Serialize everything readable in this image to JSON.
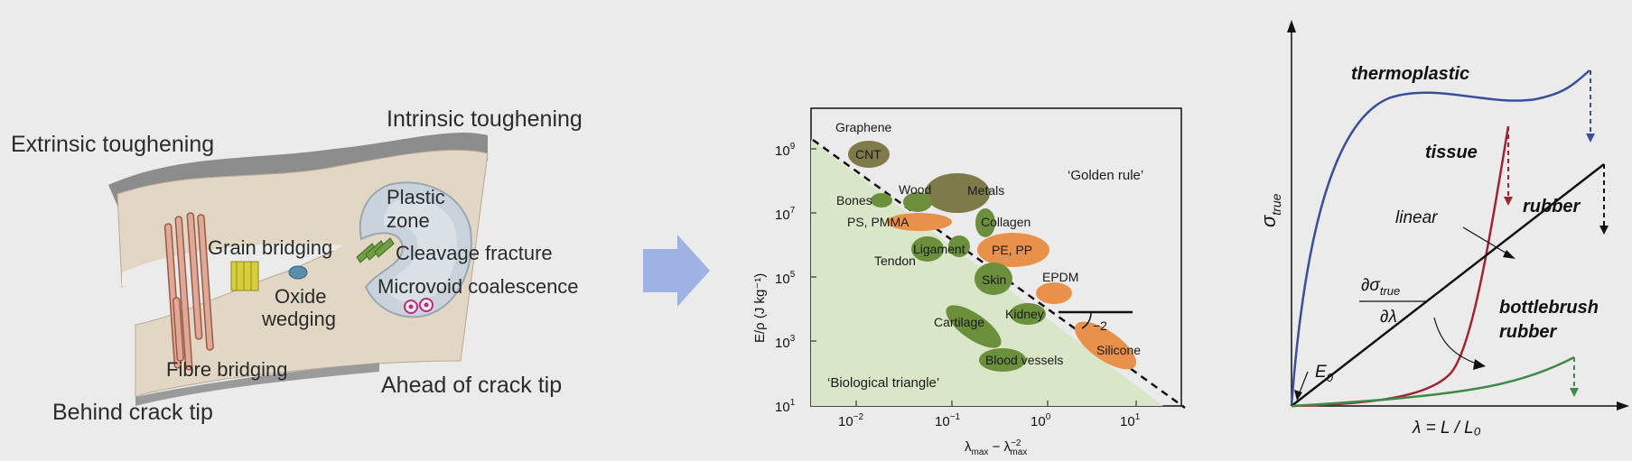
{
  "crack_diagram": {
    "extrinsic_title": "Extrinsic toughening",
    "intrinsic_title": "Intrinsic toughening",
    "behind_label": "Behind crack tip",
    "ahead_label": "Ahead of crack tip",
    "grain_bridging": "Grain bridging",
    "oxide_line1": "Oxide",
    "oxide_line2": "wedging",
    "fibre_bridging": "Fibre bridging",
    "plastic_line1": "Plastic",
    "plastic_line2": "zone",
    "cleavage": "Cleavage fracture",
    "microvoid": "Microvoid coalescence"
  },
  "ashby_plot": {
    "ylabel": "E/ρ (J kg⁻¹)",
    "xlabel": "λmax − λmax⁻²",
    "y_ticks": [
      "10^9",
      "10^7",
      "10^5",
      "10^3",
      "10^1"
    ],
    "x_ticks": [
      "10^−2",
      "10^−1",
      "10^0",
      "10^1"
    ],
    "golden_rule": "‘Golden rule’",
    "biological_triangle": "‘Biological triangle’",
    "slope_label": "−2",
    "materials": [
      {
        "name": "Graphene",
        "kind": "synthetic"
      },
      {
        "name": "CNT",
        "kind": "synthetic"
      },
      {
        "name": "Bones",
        "kind": "biological"
      },
      {
        "name": "Wood",
        "kind": "biological"
      },
      {
        "name": "Metals",
        "kind": "synthetic"
      },
      {
        "name": "PS, PMMA",
        "kind": "synthetic"
      },
      {
        "name": "Collagen",
        "kind": "biological"
      },
      {
        "name": "Ligament",
        "kind": "biological"
      },
      {
        "name": "Tendon",
        "kind": "biological"
      },
      {
        "name": "PE, PP",
        "kind": "synthetic"
      },
      {
        "name": "Skin",
        "kind": "biological"
      },
      {
        "name": "EPDM",
        "kind": "synthetic"
      },
      {
        "name": "Kidney",
        "kind": "biological"
      },
      {
        "name": "Cartilage",
        "kind": "biological"
      },
      {
        "name": "Blood vessels",
        "kind": "biological"
      },
      {
        "name": "Silicone",
        "kind": "synthetic"
      }
    ],
    "colors": {
      "biological": "#6b8f3a",
      "synthetic": "#e8914a",
      "carbon": "#7f7a4a",
      "triangle": "#d9e6c8"
    }
  },
  "stress_strain": {
    "ylabel": "σ",
    "ylabel_sub": "true",
    "xlabel": "λ = L / L₀",
    "curves": {
      "thermoplastic": "thermoplastic",
      "tissue": "tissue",
      "rubber": "rubber",
      "bottlebrush_line1": "bottlebrush",
      "bottlebrush_line2": "rubber"
    },
    "linear_label": "linear",
    "deriv_num": "∂σ",
    "deriv_num_sub": "true",
    "deriv_den": "∂λ",
    "e0_label": "E",
    "e0_sub": "0",
    "colors": {
      "thermoplastic": "#3a4f9a",
      "tissue": "#a3222f",
      "rubber": "#111111",
      "bottlebrush": "#3f8a48"
    }
  },
  "arrow_color": "#9fb3e3"
}
